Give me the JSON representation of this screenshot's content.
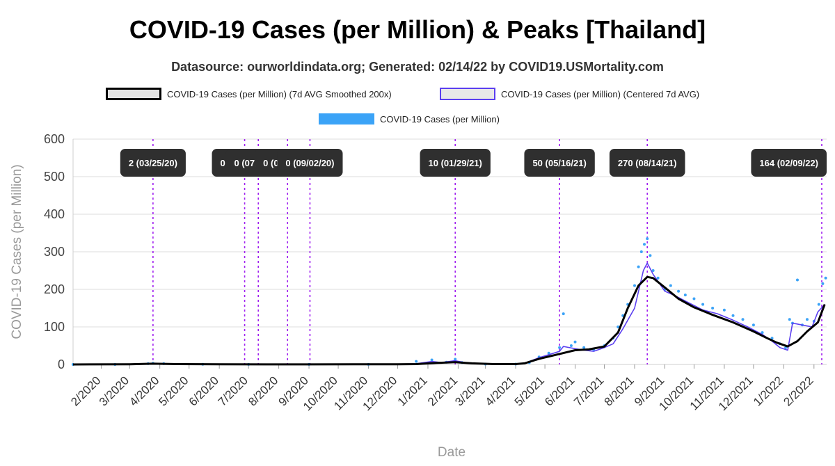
{
  "title": "COVID-19 Cases (per Million) & Peaks [Thailand]",
  "subtitle": "Datasource: ourworldindata.org; Generated: 02/14/22 by COVID19.USMortality.com",
  "colors": {
    "smoothed": "#000000",
    "centered": "#5b3ff0",
    "raw": "#3ba3f7",
    "peak_line": "#a020f0",
    "peak_label_bg": "#2f2f2f"
  },
  "chart_data": {
    "type": "line",
    "xlabel": "Date",
    "ylabel": "COVID-19 Cases (per Million)",
    "ylim": [
      0,
      600
    ],
    "yticks": [
      0,
      100,
      200,
      300,
      400,
      500,
      600
    ],
    "xlim": [
      "2020-01-03",
      "2022-02-14"
    ],
    "xtick_labels": [
      "2/2020",
      "3/2020",
      "4/2020",
      "5/2020",
      "6/2020",
      "7/2020",
      "8/2020",
      "9/2020",
      "10/2020",
      "11/2020",
      "12/2020",
      "1/2021",
      "2/2021",
      "3/2021",
      "4/2021",
      "5/2021",
      "6/2021",
      "7/2021",
      "8/2021",
      "9/2021",
      "10/2021",
      "11/2021",
      "12/2021",
      "1/2022",
      "2/2022"
    ],
    "xtick_dates": [
      "2020-02-01",
      "2020-03-01",
      "2020-04-01",
      "2020-05-01",
      "2020-06-01",
      "2020-07-01",
      "2020-08-01",
      "2020-09-01",
      "2020-10-01",
      "2020-11-01",
      "2020-12-01",
      "2021-01-01",
      "2021-02-01",
      "2021-03-01",
      "2021-04-01",
      "2021-05-01",
      "2021-06-01",
      "2021-07-01",
      "2021-08-01",
      "2021-09-01",
      "2021-10-01",
      "2021-11-01",
      "2021-12-01",
      "2022-01-01",
      "2022-02-01"
    ],
    "grid": true,
    "legend_placement": "top",
    "series": [
      {
        "name": "COVID-19 Cases (per Million) (7d AVG Smoothed 200x)",
        "style": "thick-line",
        "x": [
          "2020-01-03",
          "2020-03-01",
          "2020-03-25",
          "2020-04-20",
          "2020-06-01",
          "2020-09-01",
          "2020-12-01",
          "2020-12-20",
          "2021-01-10",
          "2021-01-29",
          "2021-02-15",
          "2021-03-10",
          "2021-04-01",
          "2021-04-10",
          "2021-04-25",
          "2021-05-16",
          "2021-06-01",
          "2021-06-15",
          "2021-07-01",
          "2021-07-15",
          "2021-07-25",
          "2021-08-05",
          "2021-08-14",
          "2021-08-20",
          "2021-09-01",
          "2021-09-15",
          "2021-10-01",
          "2021-10-20",
          "2021-11-10",
          "2021-12-01",
          "2021-12-15",
          "2021-12-25",
          "2022-01-05",
          "2022-01-15",
          "2022-01-25",
          "2022-02-05",
          "2022-02-12"
        ],
        "y": [
          0,
          0.5,
          2,
          1,
          0.3,
          0.2,
          0.5,
          1,
          4,
          6,
          3,
          1,
          1,
          3,
          15,
          28,
          38,
          40,
          48,
          85,
          150,
          210,
          233,
          230,
          205,
          175,
          152,
          132,
          112,
          88,
          70,
          58,
          48,
          62,
          88,
          112,
          160
        ]
      },
      {
        "name": "COVID-19 Cases (per Million) (Centered 7d AVG)",
        "style": "thin-line",
        "x": [
          "2020-01-03",
          "2020-03-01",
          "2020-03-25",
          "2020-04-20",
          "2020-06-01",
          "2020-09-01",
          "2020-12-01",
          "2020-12-20",
          "2021-01-05",
          "2021-01-15",
          "2021-01-29",
          "2021-02-10",
          "2021-03-01",
          "2021-04-01",
          "2021-04-10",
          "2021-04-25",
          "2021-05-10",
          "2021-05-16",
          "2021-05-20",
          "2021-06-01",
          "2021-06-10",
          "2021-06-20",
          "2021-07-01",
          "2021-07-10",
          "2021-07-20",
          "2021-08-01",
          "2021-08-10",
          "2021-08-14",
          "2021-08-20",
          "2021-09-01",
          "2021-09-10",
          "2021-09-25",
          "2021-10-10",
          "2021-10-25",
          "2021-11-10",
          "2021-11-25",
          "2021-12-10",
          "2021-12-20",
          "2021-12-28",
          "2022-01-05",
          "2022-01-10",
          "2022-01-20",
          "2022-01-30",
          "2022-02-05",
          "2022-02-12"
        ],
        "y": [
          0,
          0.5,
          3,
          1,
          0.3,
          0.2,
          0.5,
          2,
          8,
          5,
          10,
          4,
          1,
          1,
          3,
          18,
          30,
          35,
          48,
          42,
          38,
          35,
          45,
          55,
          95,
          150,
          250,
          270,
          240,
          195,
          185,
          165,
          145,
          135,
          118,
          100,
          80,
          62,
          45,
          38,
          110,
          105,
          100,
          140,
          160
        ]
      },
      {
        "name": "COVID-19 Cases (per Million)",
        "style": "points",
        "x": [
          "2020-01-03",
          "2020-02-15",
          "2020-03-20",
          "2020-03-25",
          "2020-04-05",
          "2020-05-15",
          "2020-07-01",
          "2020-09-01",
          "2020-11-01",
          "2020-12-20",
          "2021-01-05",
          "2021-01-20",
          "2021-01-29",
          "2021-02-05",
          "2021-03-01",
          "2021-04-01",
          "2021-04-15",
          "2021-04-25",
          "2021-05-05",
          "2021-05-16",
          "2021-05-20",
          "2021-05-28",
          "2021-06-01",
          "2021-06-10",
          "2021-06-20",
          "2021-07-01",
          "2021-07-10",
          "2021-07-15",
          "2021-07-20",
          "2021-07-25",
          "2021-08-01",
          "2021-08-05",
          "2021-08-08",
          "2021-08-11",
          "2021-08-14",
          "2021-08-17",
          "2021-08-20",
          "2021-08-25",
          "2021-09-01",
          "2021-09-07",
          "2021-09-15",
          "2021-09-22",
          "2021-10-01",
          "2021-10-10",
          "2021-10-20",
          "2021-11-01",
          "2021-11-10",
          "2021-11-20",
          "2021-12-01",
          "2021-12-10",
          "2021-12-20",
          "2021-12-28",
          "2022-01-03",
          "2022-01-07",
          "2022-01-10",
          "2022-01-15",
          "2022-01-20",
          "2022-01-25",
          "2022-02-01",
          "2022-02-06",
          "2022-02-10",
          "2022-02-13"
        ],
        "y": [
          0,
          0,
          2,
          3,
          2,
          0.5,
          0.2,
          0.2,
          0.3,
          8,
          12,
          6,
          14,
          5,
          1,
          1,
          5,
          20,
          30,
          45,
          135,
          50,
          60,
          45,
          40,
          50,
          70,
          100,
          130,
          160,
          210,
          260,
          300,
          320,
          335,
          290,
          250,
          230,
          200,
          210,
          195,
          185,
          175,
          160,
          150,
          145,
          130,
          120,
          105,
          85,
          70,
          55,
          45,
          120,
          110,
          225,
          105,
          120,
          115,
          160,
          215,
          230
        ]
      }
    ],
    "peaks": [
      {
        "date": "2020-03-25",
        "label": "2 (03/25/20)"
      },
      {
        "date": "2020-06-27",
        "label": "0 (06/27/20)"
      },
      {
        "date": "2020-07-11",
        "label": "0 (07/11/20)"
      },
      {
        "date": "2020-08-10",
        "label": "0 (08/10/20)"
      },
      {
        "date": "2020-09-02",
        "label": "0 (09/02/20)"
      },
      {
        "date": "2021-01-29",
        "label": "10 (01/29/21)"
      },
      {
        "date": "2021-05-16",
        "label": "50 (05/16/21)"
      },
      {
        "date": "2021-08-14",
        "label": "270 (08/14/21)"
      },
      {
        "date": "2022-02-09",
        "label": "164 (02/09/22)"
      }
    ]
  }
}
